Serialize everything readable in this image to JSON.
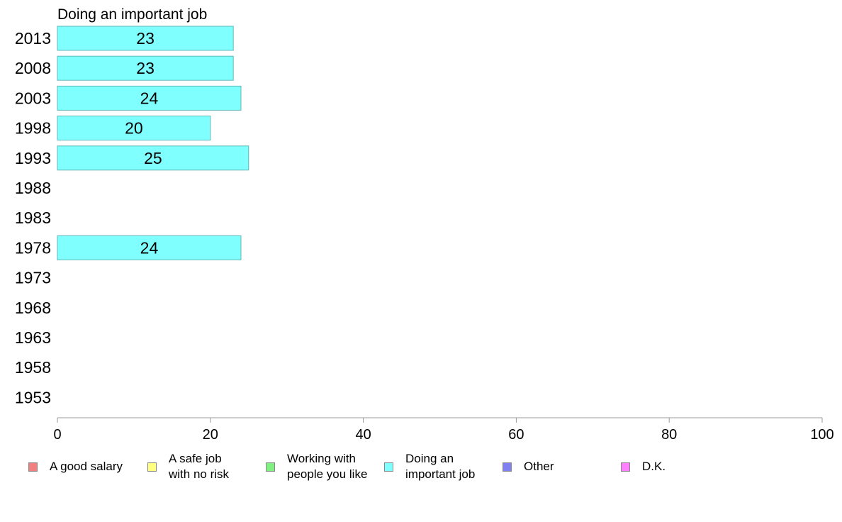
{
  "chart_data": {
    "type": "bar",
    "orientation": "horizontal",
    "title": "Doing an important job",
    "categories": [
      "2013",
      "2008",
      "2003",
      "1998",
      "1993",
      "1988",
      "1983",
      "1978",
      "1973",
      "1968",
      "1963",
      "1958",
      "1953"
    ],
    "values": [
      23,
      23,
      24,
      20,
      25,
      null,
      null,
      24,
      null,
      null,
      null,
      null,
      null
    ],
    "xlim": [
      0,
      100
    ],
    "xticks": [
      "0",
      "20",
      "40",
      "60",
      "80",
      "100"
    ],
    "bar_color": "#80ffff",
    "bar_edge_color": "#5fb8b8",
    "legend_position": "bottom",
    "legend": [
      {
        "label": "A good salary",
        "color": "#f08080"
      },
      {
        "label": "A safe job\nwith no risk",
        "color": "#ffff80"
      },
      {
        "label": "Working with\npeople you like",
        "color": "#80f080"
      },
      {
        "label": "Doing an\nimportant job",
        "color": "#80ffff"
      },
      {
        "label": "Other",
        "color": "#8080f0"
      },
      {
        "label": "D.K.",
        "color": "#ff80ff"
      }
    ]
  }
}
